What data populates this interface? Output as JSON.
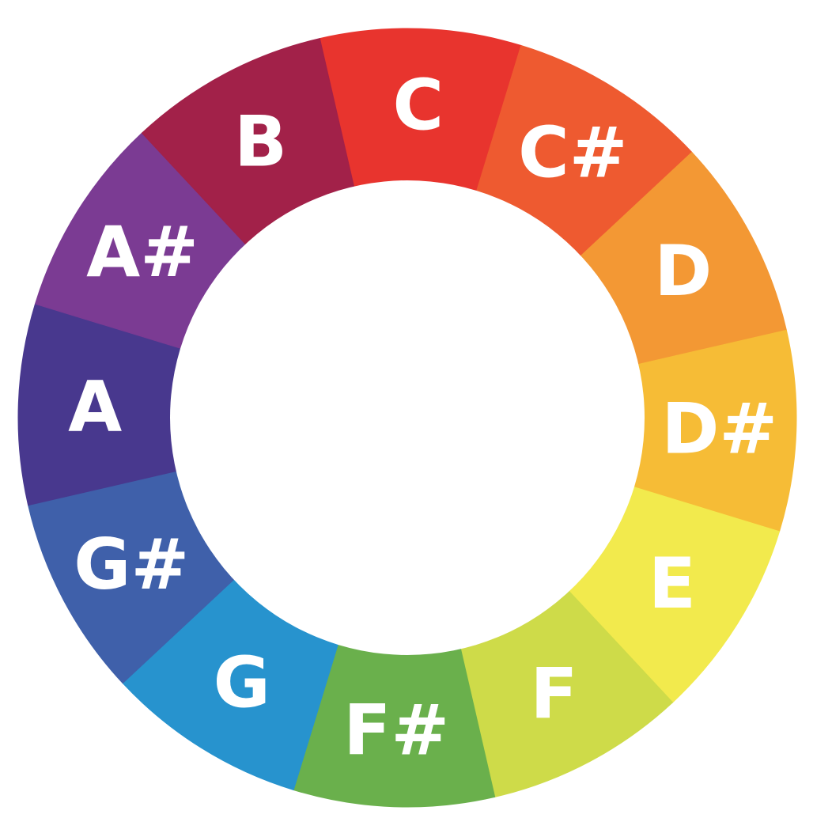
{
  "wheel": {
    "center_color": "#ffffff",
    "segments": [
      {
        "label": "C",
        "color": "#E8342E"
      },
      {
        "label": "C#",
        "color": "#EE5A30"
      },
      {
        "label": "D",
        "color": "#F39834"
      },
      {
        "label": "D#",
        "color": "#F6BC36"
      },
      {
        "label": "E",
        "color": "#F2EA4D"
      },
      {
        "label": "F",
        "color": "#CEDB49"
      },
      {
        "label": "F#",
        "color": "#6AB04C"
      },
      {
        "label": "G",
        "color": "#2793CE"
      },
      {
        "label": "G#",
        "color": "#3F60AA"
      },
      {
        "label": "A",
        "color": "#48388E"
      },
      {
        "label": "A#",
        "color": "#7B3B93"
      },
      {
        "label": "B",
        "color": "#A22149"
      }
    ]
  }
}
